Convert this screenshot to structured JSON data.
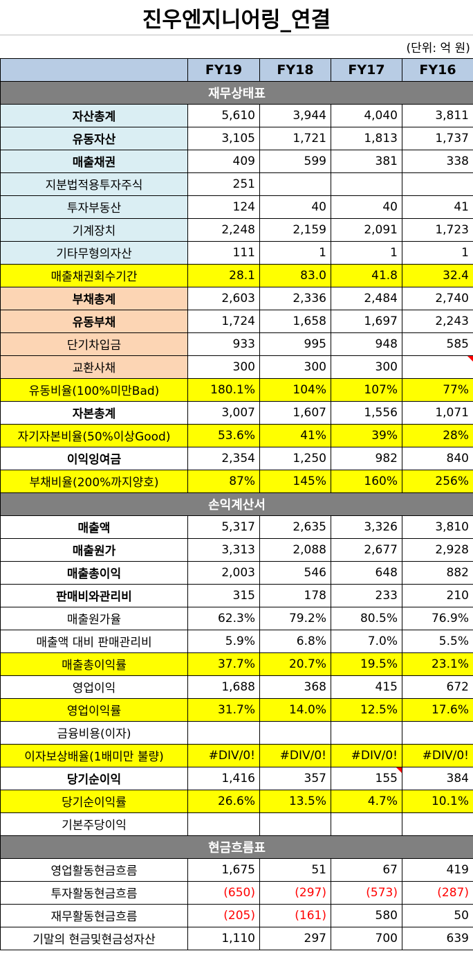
{
  "title": "진우엔지니어링_연결",
  "unit": "(단위: 억 원)",
  "columns": [
    "FY19",
    "FY18",
    "FY17",
    "FY16"
  ],
  "colors": {
    "header": "#b8cce4",
    "section": "#808080",
    "asset": "#daeef3",
    "liability": "#fcd5b4",
    "highlight": "#ffff00",
    "negative": "#ff0000"
  },
  "sections": [
    {
      "title": "재무상태표",
      "rows": [
        {
          "label": "자산총계",
          "values": [
            "5,610",
            "3,944",
            "4,040",
            "3,811"
          ],
          "style": "blue",
          "bold": true
        },
        {
          "label": "유동자산",
          "values": [
            "3,105",
            "1,721",
            "1,813",
            "1,737"
          ],
          "style": "blue",
          "bold": true
        },
        {
          "label": "매출채권",
          "values": [
            "409",
            "599",
            "381",
            "338"
          ],
          "style": "blue",
          "bold": true
        },
        {
          "label": "지분법적용투자주식",
          "values": [
            "251",
            "",
            "",
            ""
          ],
          "style": "blue",
          "bold": false
        },
        {
          "label": "투자부동산",
          "values": [
            "124",
            "40",
            "40",
            "41"
          ],
          "style": "blue",
          "bold": false
        },
        {
          "label": "기계장치",
          "values": [
            "2,248",
            "2,159",
            "2,091",
            "1,723"
          ],
          "style": "blue",
          "bold": false
        },
        {
          "label": "기타무형의자산",
          "values": [
            "111",
            "1",
            "1",
            "1"
          ],
          "style": "blue",
          "bold": false
        },
        {
          "label": "매출채권회수기간",
          "values": [
            "28.1",
            "83.0",
            "41.8",
            "32.4"
          ],
          "style": "yellow",
          "bold": false
        },
        {
          "label": "부채총계",
          "values": [
            "2,603",
            "2,336",
            "2,484",
            "2,740"
          ],
          "style": "peach",
          "bold": true
        },
        {
          "label": "유동부채",
          "values": [
            "1,724",
            "1,658",
            "1,697",
            "2,243"
          ],
          "style": "peach",
          "bold": true
        },
        {
          "label": "단기차입금",
          "values": [
            "933",
            "995",
            "948",
            "585"
          ],
          "style": "peach",
          "bold": false
        },
        {
          "label": "교환사채",
          "values": [
            "300",
            "300",
            "300",
            ""
          ],
          "style": "peach",
          "bold": false,
          "flag": 3
        },
        {
          "label": "유동비율(100%미만Bad)",
          "values": [
            "180.1%",
            "104%",
            "107%",
            "77%"
          ],
          "style": "yellow",
          "bold": false
        },
        {
          "label": "자본총계",
          "values": [
            "3,007",
            "1,607",
            "1,556",
            "1,071"
          ],
          "style": "",
          "bold": true
        },
        {
          "label": "자기자본비율(50%이상Good)",
          "values": [
            "53.6%",
            "41%",
            "39%",
            "28%"
          ],
          "style": "yellow",
          "bold": false
        },
        {
          "label": "이익잉여금",
          "values": [
            "2,354",
            "1,250",
            "982",
            "840"
          ],
          "style": "",
          "bold": true
        },
        {
          "label": "부채비율(200%까지양호)",
          "values": [
            "87%",
            "145%",
            "160%",
            "256%"
          ],
          "style": "yellow",
          "bold": false
        }
      ]
    },
    {
      "title": "손익계산서",
      "rows": [
        {
          "label": "매출액",
          "values": [
            "5,317",
            "2,635",
            "3,326",
            "3,810"
          ],
          "style": "",
          "bold": true
        },
        {
          "label": "매출원가",
          "values": [
            "3,313",
            "2,088",
            "2,677",
            "2,928"
          ],
          "style": "",
          "bold": true
        },
        {
          "label": "매출총이익",
          "values": [
            "2,003",
            "546",
            "648",
            "882"
          ],
          "style": "",
          "bold": true
        },
        {
          "label": "판매비와관리비",
          "values": [
            "315",
            "178",
            "233",
            "210"
          ],
          "style": "",
          "bold": true
        },
        {
          "label": "매출원가율",
          "values": [
            "62.3%",
            "79.2%",
            "80.5%",
            "76.9%"
          ],
          "style": "",
          "bold": false
        },
        {
          "label": "매출액 대비 판매관리비",
          "values": [
            "5.9%",
            "6.8%",
            "7.0%",
            "5.5%"
          ],
          "style": "",
          "bold": false
        },
        {
          "label": "매출총이익률",
          "values": [
            "37.7%",
            "20.7%",
            "19.5%",
            "23.1%"
          ],
          "style": "yellow",
          "bold": false
        },
        {
          "label": "영업이익",
          "values": [
            "1,688",
            "368",
            "415",
            "672"
          ],
          "style": "",
          "bold": false
        },
        {
          "label": "영업이익률",
          "values": [
            "31.7%",
            "14.0%",
            "12.5%",
            "17.6%"
          ],
          "style": "yellow",
          "bold": false
        },
        {
          "label": "금융비용(이자)",
          "values": [
            "",
            "",
            "",
            ""
          ],
          "style": "",
          "bold": false
        },
        {
          "label": "이자보상배율(1배미만 불량)",
          "values": [
            "#DIV/0!",
            "#DIV/0!",
            "#DIV/0!",
            "#DIV/0!"
          ],
          "style": "yellow",
          "bold": false
        },
        {
          "label": "당기순이익",
          "values": [
            "1,416",
            "357",
            "155",
            "384"
          ],
          "style": "",
          "bold": true,
          "flag": 2
        },
        {
          "label": "당기순이익률",
          "values": [
            "26.6%",
            "13.5%",
            "4.7%",
            "10.1%"
          ],
          "style": "yellow",
          "bold": false
        },
        {
          "label": "기본주당이익",
          "values": [
            "",
            "",
            "",
            ""
          ],
          "style": "",
          "bold": false
        }
      ]
    },
    {
      "title": "현금흐름표",
      "rows": [
        {
          "label": "영업활동현금흐름",
          "values": [
            "1,675",
            "51",
            "67",
            "419"
          ],
          "style": "",
          "bold": false
        },
        {
          "label": "투자활동현금흐름",
          "values": [
            "(650)",
            "(297)",
            "(573)",
            "(287)"
          ],
          "style": "",
          "bold": false
        },
        {
          "label": "재무활동현금흐름",
          "values": [
            "(205)",
            "(161)",
            "580",
            "50"
          ],
          "style": "",
          "bold": false
        },
        {
          "label": "기말의 현금및현금성자산",
          "values": [
            "1,110",
            "297",
            "700",
            "639"
          ],
          "style": "",
          "bold": false
        }
      ]
    }
  ]
}
